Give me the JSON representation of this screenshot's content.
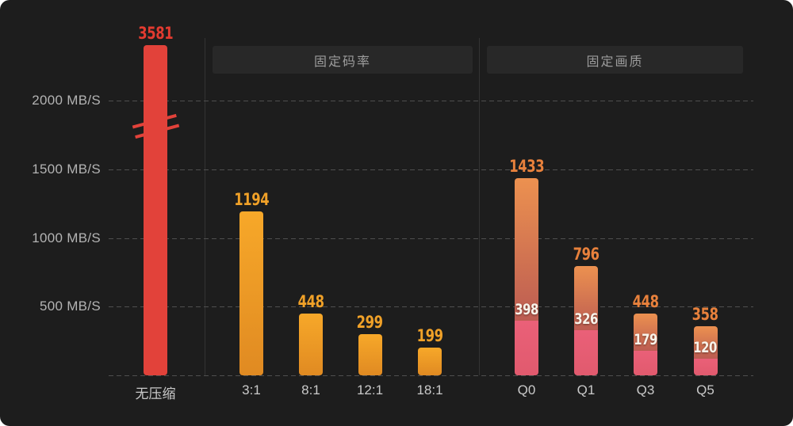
{
  "chart_data": {
    "type": "bar",
    "title": "",
    "unit": "MB/S",
    "y_axis": {
      "ticks": [
        {
          "value": 2000,
          "label": "2000 MB/S"
        },
        {
          "value": 1500,
          "label": "1500 MB/S"
        },
        {
          "value": 1000,
          "label": "1000 MB/S"
        },
        {
          "value": 500,
          "label": "500 MB/S"
        }
      ],
      "baseline_value": 0,
      "grid": "dashed",
      "note": "first bar exceeds axis and is truncated with a break symbol"
    },
    "groups": [
      {
        "name": "",
        "style": "red",
        "bars": [
          {
            "label": "无压缩",
            "value": 3581,
            "truncated": true
          }
        ]
      },
      {
        "name": "固定码率",
        "style": "orange",
        "bars": [
          {
            "label": "3:1",
            "value": 1194
          },
          {
            "label": "8:1",
            "value": 448
          },
          {
            "label": "12:1",
            "value": 299
          },
          {
            "label": "18:1",
            "value": 199
          }
        ]
      },
      {
        "name": "固定画质",
        "style": "duo",
        "bars": [
          {
            "label": "Q0",
            "value": 1433,
            "sub_value": 398
          },
          {
            "label": "Q1",
            "value": 796,
            "sub_value": 326
          },
          {
            "label": "Q3",
            "value": 448,
            "sub_value": 179
          },
          {
            "label": "Q5",
            "value": 358,
            "sub_value": 120
          }
        ]
      }
    ]
  },
  "colors": {
    "background": "#1D1D1D",
    "red_bar": "#E2423A",
    "red_label": "#E33B30",
    "orange_bar_top": "#F7A829",
    "orange_bar_bottom": "#E08A22",
    "orange_label": "#F0A128",
    "duo_upper_top": "#EC9150",
    "duo_upper_bottom": "#BC5C52",
    "duo_lower_top": "#EA6078",
    "duo_lower_bottom": "#E15A6E",
    "duo_label": "#E8813C",
    "sub_label_text": "#F8F3EA",
    "grid_line": "#4F4F4F",
    "axis_text": "#B3B3B3",
    "x_axis_text": "#C9C9C9",
    "header_bg": "#282828",
    "header_text": "#9C9C9C"
  }
}
